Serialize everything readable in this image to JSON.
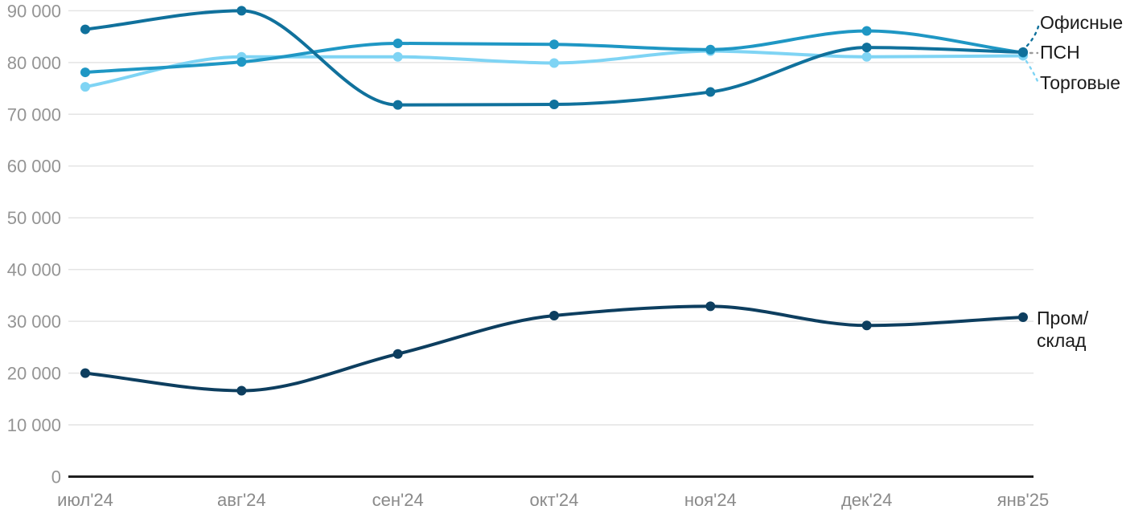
{
  "chart_data": {
    "type": "line",
    "title": "",
    "xlabel": "",
    "ylabel": "",
    "categories": [
      "июл'24",
      "авг'24",
      "сен'24",
      "окт'24",
      "ноя'24",
      "дек'24",
      "янв'25"
    ],
    "series": [
      {
        "name": "Офисные",
        "color": "#10719c",
        "values": [
          86400,
          90000,
          71800,
          71900,
          74300,
          82900,
          82000
        ]
      },
      {
        "name": "ПСН",
        "color": "#1f97c4",
        "values": [
          78100,
          80100,
          83700,
          83500,
          82500,
          86100,
          81900
        ]
      },
      {
        "name": "Торговые",
        "color": "#7fd4f4",
        "values": [
          75300,
          81100,
          81100,
          79900,
          82200,
          81100,
          81300
        ]
      },
      {
        "name": "Пром/склад",
        "color": "#0d3e5f",
        "values": [
          20000,
          16600,
          23700,
          31100,
          32900,
          29200,
          30800
        ]
      }
    ],
    "ylim": [
      0,
      90000
    ],
    "y_ticks": [
      "0",
      "10 000",
      "20 000",
      "30 000",
      "40 000",
      "50 000",
      "60 000",
      "70 000",
      "80 000",
      "90 000"
    ],
    "grid": "horizontal",
    "legend_position": "right-annotated"
  },
  "legend": {
    "items": [
      {
        "label": "Офисные"
      },
      {
        "label": "ПСН"
      },
      {
        "label": "Торговые"
      },
      {
        "line1": "Пром/",
        "line2": "склад"
      }
    ]
  },
  "colors": {
    "grid_line": "#e4e4e4",
    "axis_line": "#1f1f1f",
    "y_tick_text": "#949494",
    "x_tick_text": "#8a8a8a",
    "legend_text": "#1a1a1a",
    "psn_leader": "#9b9b9b"
  }
}
